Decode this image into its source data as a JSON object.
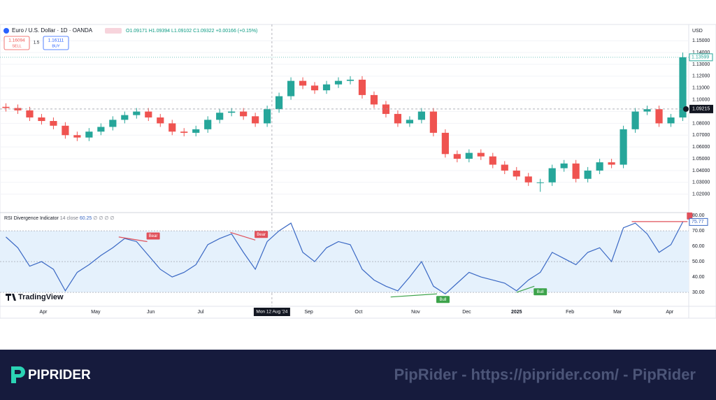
{
  "header": {
    "symbol": "Euro / U.S. Dollar · 1D · OANDA",
    "ohlc": "O1.09171 H1.09394 L1.09102 C1.09322 +0.00166 (+0.15%)",
    "sell_price": "1.16094",
    "sell": "SELL",
    "spread": "1.5",
    "buy_price": "1.16111",
    "buy": "BUY",
    "currency": "USD",
    "logo": "TradingView"
  },
  "footer": {
    "brand": "PIPRIDER",
    "watermark": "PipRider - https://piprider.com/ - PipRider"
  },
  "chart_data": [
    {
      "type": "candlestick",
      "xlim": [
        0,
        58
      ],
      "ylim": [
        1.005,
        1.162
      ],
      "yticks": [
        {
          "value": 1.02,
          "label": "1.02000"
        },
        {
          "value": 1.03,
          "label": "1.03000"
        },
        {
          "value": 1.04,
          "label": "1.04000"
        },
        {
          "value": 1.05,
          "label": "1.05000"
        },
        {
          "value": 1.06,
          "label": "1.06000"
        },
        {
          "value": 1.07,
          "label": "1.07000"
        },
        {
          "value": 1.08,
          "label": "1.08000"
        },
        {
          "value": 1.09,
          "label": "1.09000"
        },
        {
          "value": 1.1,
          "label": "1.10000"
        },
        {
          "value": 1.11,
          "label": "1.11000"
        },
        {
          "value": 1.12,
          "label": "1.12000"
        },
        {
          "value": 1.13,
          "label": "1.13000"
        },
        {
          "value": 1.14,
          "label": "1.14000"
        },
        {
          "value": 1.15,
          "label": "1.15000"
        }
      ],
      "grid": true,
      "up_color": "#26a69a",
      "down_color": "#ef5350",
      "open": [
        1.094,
        1.093,
        1.091,
        1.085,
        1.082,
        1.078,
        1.07,
        1.068,
        1.073,
        1.077,
        1.083,
        1.087,
        1.09,
        1.085,
        1.08,
        1.073,
        1.072,
        1.075,
        1.083,
        1.089,
        1.09,
        1.086,
        1.08,
        1.092,
        1.103,
        1.116,
        1.112,
        1.108,
        1.113,
        1.116,
        1.117,
        1.104,
        1.096,
        1.088,
        1.08,
        1.083,
        1.09,
        1.072,
        1.054,
        1.05,
        1.055,
        1.052,
        1.045,
        1.04,
        1.035,
        1.03,
        1.03,
        1.042,
        1.046,
        1.033,
        1.04,
        1.047,
        1.045,
        1.075,
        1.09,
        1.092,
        1.08,
        1.085
      ],
      "high": [
        1.097,
        1.096,
        1.094,
        1.088,
        1.085,
        1.081,
        1.073,
        1.076,
        1.08,
        1.086,
        1.09,
        1.093,
        1.093,
        1.088,
        1.083,
        1.076,
        1.078,
        1.086,
        1.092,
        1.093,
        1.093,
        1.089,
        1.095,
        1.106,
        1.119,
        1.119,
        1.115,
        1.116,
        1.119,
        1.12,
        1.12,
        1.107,
        1.099,
        1.091,
        1.086,
        1.093,
        1.093,
        1.075,
        1.057,
        1.058,
        1.058,
        1.055,
        1.048,
        1.043,
        1.038,
        1.033,
        1.045,
        1.049,
        1.049,
        1.043,
        1.05,
        1.05,
        1.078,
        1.093,
        1.095,
        1.095,
        1.088,
        1.14
      ],
      "low": [
        1.09,
        1.088,
        1.082,
        1.079,
        1.075,
        1.067,
        1.065,
        1.065,
        1.07,
        1.074,
        1.08,
        1.084,
        1.082,
        1.077,
        1.07,
        1.069,
        1.069,
        1.072,
        1.08,
        1.086,
        1.083,
        1.077,
        1.077,
        1.089,
        1.1,
        1.109,
        1.105,
        1.105,
        1.11,
        1.113,
        1.101,
        1.093,
        1.085,
        1.077,
        1.077,
        1.08,
        1.069,
        1.051,
        1.047,
        1.047,
        1.049,
        1.042,
        1.037,
        1.032,
        1.027,
        1.022,
        1.027,
        1.039,
        1.03,
        1.03,
        1.037,
        1.042,
        1.042,
        1.072,
        1.087,
        1.077,
        1.077,
        1.082
      ],
      "close": [
        1.093,
        1.091,
        1.085,
        1.082,
        1.078,
        1.07,
        1.068,
        1.073,
        1.077,
        1.083,
        1.087,
        1.09,
        1.085,
        1.08,
        1.073,
        1.072,
        1.075,
        1.083,
        1.089,
        1.09,
        1.086,
        1.08,
        1.092,
        1.103,
        1.116,
        1.112,
        1.108,
        1.113,
        1.116,
        1.117,
        1.104,
        1.096,
        1.088,
        1.08,
        1.083,
        1.09,
        1.072,
        1.054,
        1.05,
        1.055,
        1.052,
        1.045,
        1.04,
        1.035,
        1.03,
        1.03,
        1.042,
        1.046,
        1.033,
        1.04,
        1.047,
        1.045,
        1.075,
        1.09,
        1.092,
        1.08,
        1.085,
        1.13599
      ],
      "crosshair": {
        "x": 22.9,
        "x_label": "Mon 12 Aug '24",
        "y": 1.09215
      }
    },
    {
      "type": "line",
      "title": "RSI Divergence Indicator",
      "params": "14 close",
      "legend_value": 60.25,
      "legend_extra": "∅ ∅ ∅ ∅",
      "xlim": [
        0,
        58
      ],
      "ylim": [
        21.4,
        81.4
      ],
      "yticks": [
        {
          "value": 30,
          "label": "30.00"
        },
        {
          "value": 40,
          "label": "40.00"
        },
        {
          "value": 50,
          "label": "50.00"
        },
        {
          "value": 60,
          "label": "60.00"
        },
        {
          "value": 70,
          "label": "70.00"
        },
        {
          "value": 80,
          "label": "80.00"
        }
      ],
      "levels": [
        30,
        50,
        70
      ],
      "band_color": "#e5f1fc",
      "color": "#3a68c4",
      "values": [
        66,
        59,
        47,
        50,
        45,
        31,
        43,
        48,
        54,
        59,
        65,
        63,
        54,
        45,
        40,
        43,
        48,
        61,
        65,
        68,
        56,
        45,
        63,
        70,
        75,
        56,
        50,
        59,
        63,
        61,
        45,
        38,
        34,
        31,
        40,
        50,
        34,
        29,
        36,
        43,
        40,
        38,
        36,
        31,
        38,
        43,
        56,
        52,
        48,
        56,
        59,
        50,
        72,
        75,
        68,
        56,
        61,
        75.77
      ],
      "divergences": [
        {
          "x": [
            10,
            12.4
          ],
          "y": [
            66,
            63
          ],
          "label": "Bear",
          "color": "#e0505a"
        },
        {
          "x": [
            19.4,
            21.5
          ],
          "y": [
            69,
            64
          ],
          "label": "Bear",
          "color": "#e0505a"
        },
        {
          "x": [
            32.9,
            36.8
          ],
          "y": [
            27,
            29
          ],
          "label": "Bull",
          "color": "#3ca34a"
        },
        {
          "x": [
            43.5,
            45
          ],
          "y": [
            30,
            34
          ],
          "label": "Bull",
          "color": "#3ca34a"
        },
        {
          "x": [
            53.2,
            57.9
          ],
          "y": [
            76,
            76
          ],
          "color": "#e0505a"
        }
      ],
      "xticks": [
        {
          "value": 3.65,
          "label": "Apr"
        },
        {
          "value": 8.06,
          "label": "May"
        },
        {
          "value": 12.7,
          "label": "Jun"
        },
        {
          "value": 16.9,
          "label": "Jul"
        },
        {
          "value": 26,
          "label": "Sep"
        },
        {
          "value": 30.2,
          "label": "Oct"
        },
        {
          "value": 35,
          "label": "Nov"
        },
        {
          "value": 39.3,
          "label": "Dec"
        },
        {
          "value": 43.5,
          "label": "2025"
        },
        {
          "value": 48,
          "label": "Feb"
        },
        {
          "value": 52,
          "label": "Mar"
        },
        {
          "value": 56.4,
          "label": "Apr"
        }
      ]
    }
  ]
}
